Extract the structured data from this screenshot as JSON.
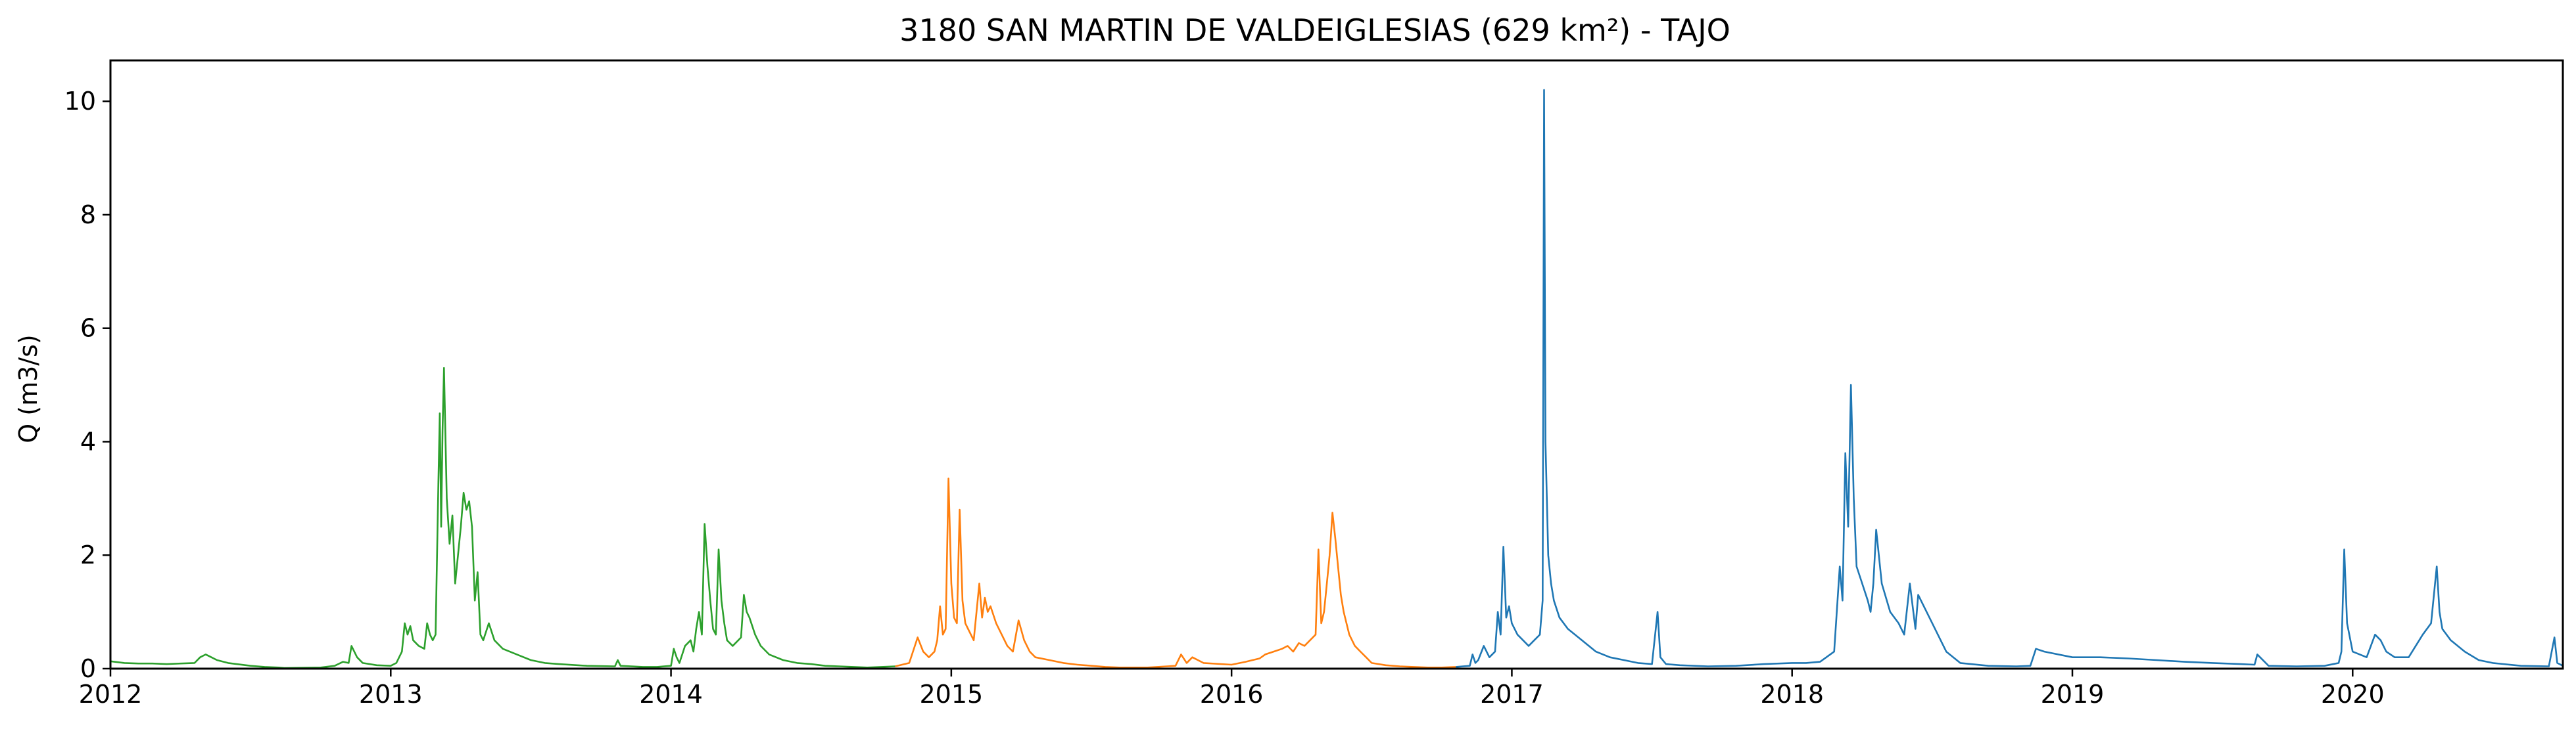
{
  "chart_data": {
    "type": "line",
    "title": "3180 SAN MARTIN DE VALDEIGLESIAS (629 km²) - TAJO",
    "xlabel": "",
    "ylabel": "Q (m3/s)",
    "xlim": [
      2012.0,
      2020.75
    ],
    "ylim": [
      0,
      10.72
    ],
    "xticks": [
      2012,
      2013,
      2014,
      2015,
      2016,
      2017,
      2018,
      2019,
      2020
    ],
    "xtick_labels": [
      "2012",
      "2013",
      "2014",
      "2015",
      "2016",
      "2017",
      "2018",
      "2019",
      "2020"
    ],
    "yticks": [
      0,
      2,
      4,
      6,
      8,
      10
    ],
    "ytick_labels": [
      "0",
      "2",
      "4",
      "6",
      "8",
      "10"
    ],
    "grid": false,
    "legend": "none",
    "series": [
      {
        "color": "#2ca02c",
        "x": [
          2012.0,
          2012.05,
          2012.1,
          2012.15,
          2012.2,
          2012.25,
          2012.3,
          2012.32,
          2012.34,
          2012.36,
          2012.38,
          2012.42,
          2012.45,
          2012.5,
          2012.55,
          2012.6,
          2012.62,
          2012.75,
          2012.8,
          2012.83,
          2012.85,
          2012.86,
          2012.88,
          2012.9,
          2012.95,
          2013.0,
          2013.02,
          2013.04,
          2013.05,
          2013.06,
          2013.07,
          2013.08,
          2013.1,
          2013.12,
          2013.13,
          2013.14,
          2013.15,
          2013.16,
          2013.17,
          2013.175,
          2013.18,
          2013.185,
          2013.19,
          2013.2,
          2013.21,
          2013.22,
          2013.23,
          2013.24,
          2013.25,
          2013.26,
          2013.27,
          2013.28,
          2013.29,
          2013.3,
          2013.31,
          2013.32,
          2013.33,
          2013.35,
          2013.37,
          2013.4,
          2013.45,
          2013.5,
          2013.55,
          2013.6,
          2013.7,
          2013.8,
          2013.81,
          2013.82,
          2013.9,
          2013.95,
          2014.0,
          2014.01,
          2014.02,
          2014.03,
          2014.05,
          2014.07,
          2014.08,
          2014.09,
          2014.1,
          2014.11,
          2014.12,
          2014.13,
          2014.14,
          2014.15,
          2014.16,
          2014.17,
          2014.18,
          2014.19,
          2014.2,
          2014.22,
          2014.24,
          2014.25,
          2014.26,
          2014.27,
          2014.28,
          2014.3,
          2014.32,
          2014.35,
          2014.4,
          2014.45,
          2014.5,
          2014.55,
          2014.6,
          2014.65,
          2014.7,
          2014.75,
          2014.8
        ],
        "y": [
          0.13,
          0.1,
          0.09,
          0.09,
          0.08,
          0.09,
          0.1,
          0.2,
          0.25,
          0.2,
          0.15,
          0.1,
          0.08,
          0.05,
          0.03,
          0.02,
          0.01,
          0.02,
          0.05,
          0.12,
          0.1,
          0.4,
          0.2,
          0.1,
          0.06,
          0.05,
          0.1,
          0.3,
          0.8,
          0.6,
          0.75,
          0.5,
          0.4,
          0.35,
          0.8,
          0.6,
          0.5,
          0.6,
          3.3,
          4.5,
          2.5,
          4.2,
          5.3,
          3.0,
          2.2,
          2.7,
          1.5,
          2.0,
          2.5,
          3.1,
          2.8,
          2.95,
          2.5,
          1.2,
          1.7,
          0.6,
          0.5,
          0.8,
          0.5,
          0.35,
          0.25,
          0.15,
          0.1,
          0.08,
          0.05,
          0.04,
          0.15,
          0.05,
          0.03,
          0.03,
          0.05,
          0.35,
          0.2,
          0.1,
          0.4,
          0.5,
          0.3,
          0.7,
          1.0,
          0.6,
          2.55,
          1.8,
          1.2,
          0.7,
          0.6,
          2.1,
          1.2,
          0.8,
          0.5,
          0.4,
          0.5,
          0.55,
          1.3,
          1.0,
          0.9,
          0.6,
          0.4,
          0.25,
          0.15,
          0.1,
          0.08,
          0.05,
          0.04,
          0.03,
          0.02,
          0.03,
          0.04
        ]
      },
      {
        "color": "#ff7f0e",
        "x": [
          2014.8,
          2014.85,
          2014.88,
          2014.9,
          2014.92,
          2014.94,
          2014.95,
          2014.96,
          2014.97,
          2014.98,
          2014.99,
          2015.0,
          2015.01,
          2015.02,
          2015.03,
          2015.04,
          2015.05,
          2015.06,
          2015.08,
          2015.1,
          2015.11,
          2015.12,
          2015.13,
          2015.14,
          2015.16,
          2015.18,
          2015.2,
          2015.22,
          2015.24,
          2015.26,
          2015.28,
          2015.3,
          2015.35,
          2015.4,
          2015.45,
          2015.5,
          2015.55,
          2015.6,
          2015.7,
          2015.8,
          2015.82,
          2015.84,
          2015.86,
          2015.9,
          2016.0,
          2016.05,
          2016.1,
          2016.12,
          2016.15,
          2016.18,
          2016.2,
          2016.22,
          2016.24,
          2016.26,
          2016.28,
          2016.3,
          2016.31,
          2016.32,
          2016.33,
          2016.34,
          2016.35,
          2016.36,
          2016.37,
          2016.38,
          2016.39,
          2016.4,
          2016.42,
          2016.44,
          2016.46,
          2016.48,
          2016.5,
          2016.55,
          2016.6,
          2016.65,
          2016.7,
          2016.75,
          2016.8
        ],
        "y": [
          0.04,
          0.1,
          0.55,
          0.3,
          0.2,
          0.3,
          0.5,
          1.1,
          0.6,
          0.7,
          3.35,
          1.5,
          0.9,
          0.8,
          2.8,
          1.2,
          0.8,
          0.7,
          0.5,
          1.5,
          0.9,
          1.25,
          1.0,
          1.1,
          0.8,
          0.6,
          0.4,
          0.3,
          0.85,
          0.5,
          0.3,
          0.2,
          0.15,
          0.1,
          0.07,
          0.05,
          0.03,
          0.02,
          0.02,
          0.05,
          0.25,
          0.1,
          0.2,
          0.1,
          0.07,
          0.12,
          0.18,
          0.25,
          0.3,
          0.35,
          0.4,
          0.3,
          0.45,
          0.4,
          0.5,
          0.6,
          2.1,
          0.8,
          1.0,
          1.5,
          2.0,
          2.75,
          2.3,
          1.8,
          1.3,
          1.0,
          0.6,
          0.4,
          0.3,
          0.2,
          0.1,
          0.06,
          0.04,
          0.03,
          0.02,
          0.02,
          0.03
        ]
      },
      {
        "color": "#1f77b4",
        "x": [
          2016.8,
          2016.85,
          2016.86,
          2016.87,
          2016.88,
          2016.9,
          2016.92,
          2016.94,
          2016.95,
          2016.96,
          2016.97,
          2016.98,
          2016.99,
          2017.0,
          2017.02,
          2017.04,
          2017.06,
          2017.08,
          2017.1,
          2017.11,
          2017.115,
          2017.12,
          2017.13,
          2017.14,
          2017.15,
          2017.17,
          2017.2,
          2017.25,
          2017.3,
          2017.35,
          2017.4,
          2017.45,
          2017.5,
          2017.52,
          2017.53,
          2017.55,
          2017.6,
          2017.7,
          2017.8,
          2017.9,
          2018.0,
          2018.05,
          2018.1,
          2018.15,
          2018.17,
          2018.18,
          2018.19,
          2018.2,
          2018.21,
          2018.22,
          2018.23,
          2018.25,
          2018.27,
          2018.28,
          2018.29,
          2018.3,
          2018.32,
          2018.35,
          2018.38,
          2018.4,
          2018.42,
          2018.44,
          2018.45,
          2018.5,
          2018.55,
          2018.6,
          2018.7,
          2018.8,
          2018.85,
          2018.87,
          2018.9,
          2019.0,
          2019.1,
          2019.2,
          2019.3,
          2019.4,
          2019.5,
          2019.6,
          2019.65,
          2019.66,
          2019.7,
          2019.8,
          2019.9,
          2019.95,
          2019.96,
          2019.97,
          2019.98,
          2020.0,
          2020.05,
          2020.08,
          2020.1,
          2020.12,
          2020.15,
          2020.2,
          2020.25,
          2020.28,
          2020.3,
          2020.31,
          2020.32,
          2020.35,
          2020.4,
          2020.45,
          2020.5,
          2020.6,
          2020.7,
          2020.72,
          2020.73,
          2020.75
        ],
        "y": [
          0.03,
          0.05,
          0.25,
          0.1,
          0.15,
          0.4,
          0.2,
          0.3,
          1.0,
          0.6,
          2.15,
          0.9,
          1.1,
          0.8,
          0.6,
          0.5,
          0.4,
          0.5,
          0.6,
          1.2,
          10.2,
          4.0,
          2.0,
          1.5,
          1.2,
          0.9,
          0.7,
          0.5,
          0.3,
          0.2,
          0.15,
          0.1,
          0.08,
          1.0,
          0.2,
          0.08,
          0.06,
          0.04,
          0.05,
          0.08,
          0.1,
          0.1,
          0.12,
          0.3,
          1.8,
          1.2,
          3.8,
          2.5,
          5.0,
          3.0,
          1.8,
          1.5,
          1.2,
          1.0,
          1.5,
          2.45,
          1.5,
          1.0,
          0.8,
          0.6,
          1.5,
          0.7,
          1.3,
          0.8,
          0.3,
          0.1,
          0.05,
          0.04,
          0.05,
          0.35,
          0.3,
          0.2,
          0.2,
          0.18,
          0.15,
          0.12,
          0.1,
          0.08,
          0.07,
          0.25,
          0.05,
          0.04,
          0.05,
          0.1,
          0.3,
          2.1,
          0.8,
          0.3,
          0.2,
          0.6,
          0.5,
          0.3,
          0.2,
          0.2,
          0.6,
          0.8,
          1.8,
          1.0,
          0.7,
          0.5,
          0.3,
          0.15,
          0.1,
          0.05,
          0.04,
          0.55,
          0.1,
          0.05
        ]
      }
    ]
  }
}
